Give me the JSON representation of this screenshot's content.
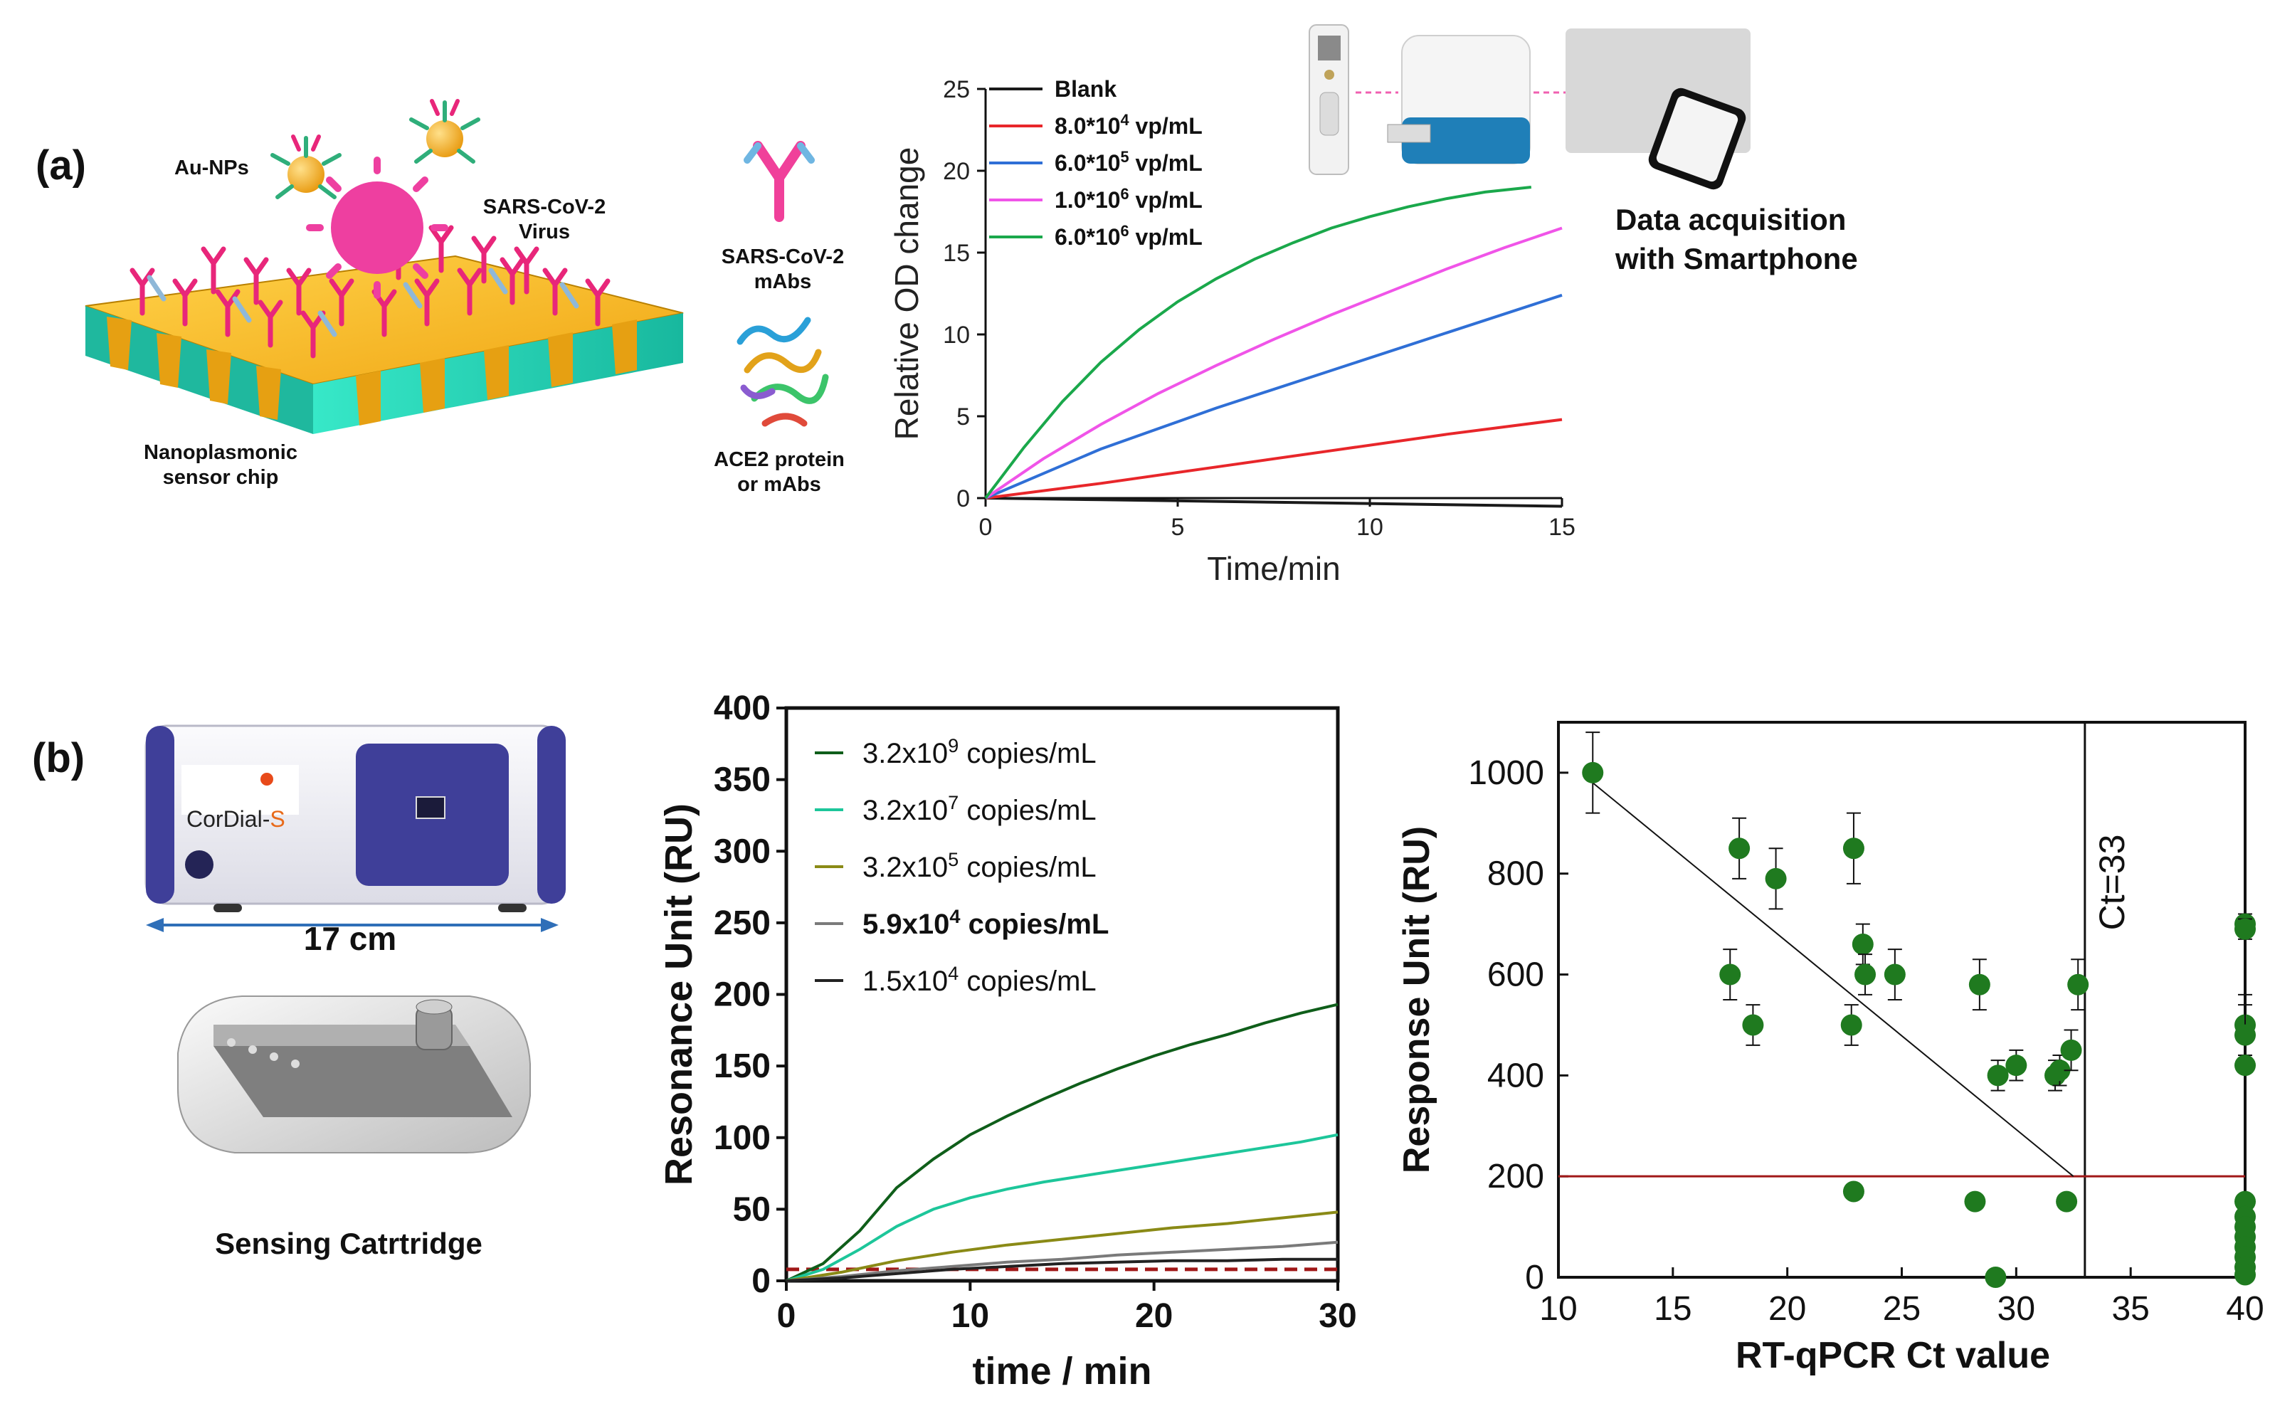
{
  "figure": {
    "panel_a_label": "(a)",
    "panel_b_label": "(b)",
    "chip": {
      "au_nps": "Au-NPs",
      "virus_line1": "SARS-CoV-2",
      "virus_line2": "Virus",
      "chip_line1": "Nanoplasmonic",
      "chip_line2": "sensor chip"
    },
    "mabs": {
      "line1": "SARS-CoV-2",
      "line2": "mAbs"
    },
    "ace2": {
      "line1": "ACE2 protein",
      "line2": "or mAbs"
    },
    "smartphone": {
      "line1": "Data acquisition",
      "line2": "with Smartphone"
    },
    "device": {
      "brand_prefix": "CorDial-",
      "brand_suffix": "S",
      "size": "17 cm"
    },
    "cartridge": {
      "caption": "Sensing Catrtridge"
    }
  },
  "colors": {
    "black": "#1a1a1a",
    "red": "#e8262a",
    "blue": "#2f6fd6",
    "magenta": "#f054e8",
    "green_a": "#1aa84b",
    "dark_green": "#0f5e1a",
    "teal": "#1dc69a",
    "olive": "#8a8a16",
    "gray": "#7a7a7a",
    "dark": "#222222",
    "point_green": "#1f7a1f",
    "threshold_red": "#a01818",
    "chip_gold": "#f5b51c",
    "chip_teal": "#22d8b8",
    "device_purple": "#3f3f99"
  },
  "chart_data": [
    {
      "id": "chart_a",
      "type": "line",
      "title": "",
      "xlabel": "Time/min",
      "ylabel": "Relative OD change",
      "xlim": [
        0,
        15
      ],
      "ylim": [
        0,
        25
      ],
      "xticks": [
        0,
        5,
        10,
        15
      ],
      "yticks": [
        0,
        5,
        10,
        15,
        20,
        25
      ],
      "legend_position": "top-left",
      "series": [
        {
          "name": "Blank",
          "label_base": "Blank",
          "label_exp": "",
          "label_unit": "",
          "color": "black",
          "x": [
            0,
            3,
            6,
            9,
            12,
            15
          ],
          "y": [
            0,
            -0.1,
            -0.2,
            -0.3,
            -0.4,
            -0.5
          ]
        },
        {
          "name": "8.0*10^4 vp/mL",
          "label_base": "8.0*10",
          "label_exp": "4",
          "label_unit": " vp/mL",
          "color": "red",
          "x": [
            0,
            3,
            6,
            9,
            12,
            15
          ],
          "y": [
            0,
            0.9,
            1.9,
            2.9,
            3.9,
            4.8
          ]
        },
        {
          "name": "6.0*10^5 vp/mL",
          "label_base": "6.0*10",
          "label_exp": "5",
          "label_unit": " vp/mL",
          "color": "blue",
          "x": [
            0,
            3,
            6,
            9,
            12,
            15
          ],
          "y": [
            0,
            3.0,
            5.5,
            7.8,
            10.1,
            12.4
          ]
        },
        {
          "name": "1.0*10^6 vp/mL",
          "label_base": "1.0*10",
          "label_exp": "6",
          "label_unit": " vp/mL",
          "color": "magenta",
          "x": [
            0,
            1.5,
            3,
            4.5,
            6,
            7.5,
            9,
            10.5,
            12,
            13.5,
            15
          ],
          "y": [
            0,
            2.4,
            4.5,
            6.4,
            8.1,
            9.7,
            11.2,
            12.6,
            14.0,
            15.3,
            16.5
          ]
        },
        {
          "name": "6.0*10^6 vp/mL",
          "label_base": "6.0*10",
          "label_exp": "6",
          "label_unit": " vp/mL",
          "color": "green_a",
          "x": [
            0,
            1,
            2,
            3,
            4,
            5,
            6,
            7,
            8,
            9,
            10,
            11,
            12,
            13,
            14.2
          ],
          "y": [
            0,
            3.1,
            5.9,
            8.3,
            10.3,
            12.0,
            13.4,
            14.6,
            15.6,
            16.5,
            17.2,
            17.8,
            18.3,
            18.7,
            19.0
          ]
        }
      ]
    },
    {
      "id": "chart_b1",
      "type": "line",
      "title": "",
      "xlabel": "time / min",
      "ylabel": "Resonance Unit (RU)",
      "xlim": [
        0,
        30
      ],
      "ylim": [
        0,
        400
      ],
      "xticks": [
        0,
        10,
        20,
        30
      ],
      "yticks": [
        0,
        50,
        100,
        150,
        200,
        250,
        300,
        350,
        400
      ],
      "legend_position": "top-left",
      "threshold": {
        "y": 8,
        "style": "dashed",
        "color": "threshold_red"
      },
      "series": [
        {
          "name": "3.2x10^9 copies/mL",
          "label_base": "3.2x10",
          "label_exp": "9",
          "label_unit": " copies/mL",
          "bold": false,
          "color": "dark_green",
          "x": [
            0,
            2,
            4,
            6,
            8,
            10,
            12,
            14,
            16,
            18,
            20,
            22,
            24,
            26,
            28,
            30
          ],
          "y": [
            0,
            12,
            35,
            65,
            85,
            102,
            115,
            127,
            138,
            148,
            157,
            165,
            172,
            180,
            187,
            193
          ]
        },
        {
          "name": "3.2x10^7 copies/mL",
          "label_base": "3.2x10",
          "label_exp": "7",
          "label_unit": " copies/mL",
          "bold": false,
          "color": "teal",
          "x": [
            0,
            2,
            4,
            6,
            8,
            10,
            12,
            14,
            16,
            18,
            20,
            22,
            24,
            26,
            28,
            30
          ],
          "y": [
            0,
            8,
            22,
            38,
            50,
            58,
            64,
            69,
            73,
            77,
            81,
            85,
            89,
            93,
            97,
            102
          ]
        },
        {
          "name": "3.2x10^5 copies/mL",
          "label_base": "3.2x10",
          "label_exp": "5",
          "label_unit": " copies/mL",
          "bold": false,
          "color": "olive",
          "x": [
            0,
            3,
            6,
            9,
            12,
            15,
            18,
            21,
            24,
            27,
            30
          ],
          "y": [
            0,
            6,
            14,
            20,
            25,
            29,
            33,
            37,
            40,
            44,
            48
          ]
        },
        {
          "name": "5.9x10^4 copies/mL",
          "label_base": "5.9x10",
          "label_exp": "4",
          "label_unit": " copies/mL",
          "bold": true,
          "color": "gray",
          "x": [
            0,
            3,
            6,
            9,
            12,
            15,
            18,
            21,
            24,
            27,
            30
          ],
          "y": [
            0,
            3,
            7,
            10,
            13,
            15,
            18,
            20,
            22,
            24,
            27
          ]
        },
        {
          "name": "1.5x10^4 copies/mL",
          "label_base": "1.5x10",
          "label_exp": "4",
          "label_unit": " copies/mL",
          "bold": false,
          "color": "dark",
          "x": [
            0,
            3,
            6,
            9,
            12,
            15,
            18,
            21,
            24,
            27,
            30
          ],
          "y": [
            0,
            2,
            5,
            8,
            10,
            12,
            13,
            14,
            14,
            15,
            15
          ]
        }
      ]
    },
    {
      "id": "chart_b2",
      "type": "scatter",
      "title": "",
      "xlabel": "RT-qPCR Ct value",
      "ylabel": "Response Unit (RU)",
      "xlim": [
        10,
        40
      ],
      "ylim": [
        0,
        1100
      ],
      "xticks": [
        10,
        15,
        20,
        25,
        30,
        35,
        40
      ],
      "yticks": [
        0,
        200,
        400,
        600,
        800,
        1000
      ],
      "vline": {
        "x": 33,
        "label": "Ct=33"
      },
      "hline": {
        "y": 200
      },
      "trendline": {
        "x": [
          11.5,
          32.5
        ],
        "y": [
          980,
          200
        ]
      },
      "points": [
        {
          "x": 11.5,
          "y": 1000,
          "err": 80
        },
        {
          "x": 17.5,
          "y": 600,
          "err": 50
        },
        {
          "x": 17.9,
          "y": 850,
          "err": 60
        },
        {
          "x": 18.5,
          "y": 500,
          "err": 40
        },
        {
          "x": 19.5,
          "y": 790,
          "err": 60
        },
        {
          "x": 22.8,
          "y": 500,
          "err": 40
        },
        {
          "x": 22.9,
          "y": 850,
          "err": 70
        },
        {
          "x": 22.9,
          "y": 170,
          "err": 0
        },
        {
          "x": 23.3,
          "y": 660,
          "err": 40
        },
        {
          "x": 23.4,
          "y": 600,
          "err": 40
        },
        {
          "x": 24.7,
          "y": 600,
          "err": 50
        },
        {
          "x": 28.2,
          "y": 150,
          "err": 0
        },
        {
          "x": 28.4,
          "y": 580,
          "err": 50
        },
        {
          "x": 29.1,
          "y": 0,
          "err": 0
        },
        {
          "x": 29.2,
          "y": 400,
          "err": 30
        },
        {
          "x": 30.0,
          "y": 420,
          "err": 30
        },
        {
          "x": 31.7,
          "y": 400,
          "err": 30
        },
        {
          "x": 31.9,
          "y": 410,
          "err": 30
        },
        {
          "x": 32.2,
          "y": 150,
          "err": 0
        },
        {
          "x": 32.4,
          "y": 450,
          "err": 40
        },
        {
          "x": 32.7,
          "y": 580,
          "err": 50
        },
        {
          "x": 40,
          "y": 700,
          "err": 20
        },
        {
          "x": 40,
          "y": 690,
          "err": 20
        },
        {
          "x": 40,
          "y": 500,
          "err": 60
        },
        {
          "x": 40,
          "y": 480,
          "err": 60
        },
        {
          "x": 40,
          "y": 420,
          "err": 0
        },
        {
          "x": 40,
          "y": 150,
          "err": 0
        },
        {
          "x": 40,
          "y": 120,
          "err": 0
        },
        {
          "x": 40,
          "y": 100,
          "err": 0
        },
        {
          "x": 40,
          "y": 80,
          "err": 0
        },
        {
          "x": 40,
          "y": 60,
          "err": 0
        },
        {
          "x": 40,
          "y": 40,
          "err": 0
        },
        {
          "x": 40,
          "y": 20,
          "err": 0
        },
        {
          "x": 40,
          "y": 5,
          "err": 0
        }
      ]
    }
  ]
}
